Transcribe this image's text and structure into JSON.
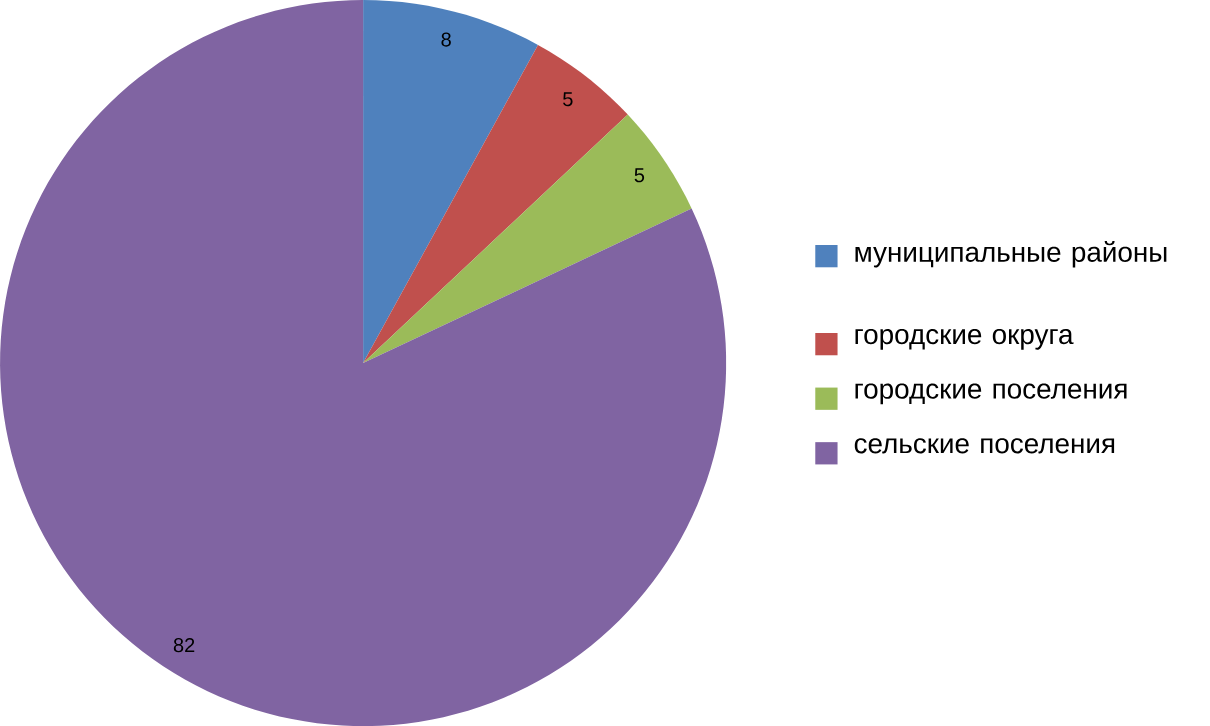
{
  "chart_data": {
    "type": "pie",
    "categories": [
      "муниципальные районы",
      "городские округа",
      "городские поселения",
      "сельские поселения"
    ],
    "values": [
      8,
      5,
      5,
      82
    ],
    "colors": [
      "#4f81bd",
      "#c0504d",
      "#9bbb59",
      "#8064a2"
    ],
    "data_labels": true,
    "legend": "right"
  }
}
